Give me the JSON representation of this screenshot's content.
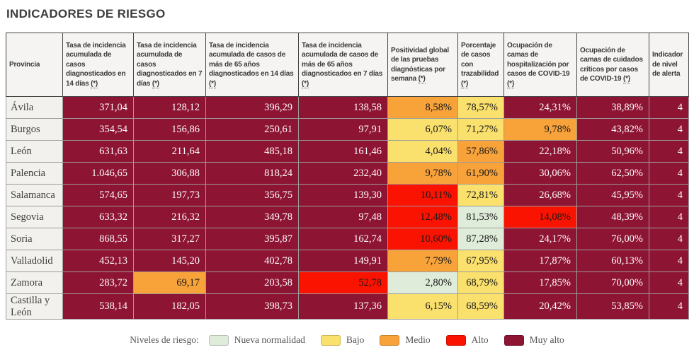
{
  "title": "INDICADORES DE RIESGO",
  "colors": {
    "muy_alto": "#8e1434",
    "alto": "#fb1301",
    "medio": "#f8a23a",
    "bajo": "#fae06c",
    "nueva_normalidad": "#dfecd9"
  },
  "table": {
    "headers": [
      {
        "label": "Provincia",
        "suffix": ""
      },
      {
        "label": "Tasa de incidencia acumulada de casos diagnosticados en 14 días",
        "suffix": "(*)"
      },
      {
        "label": "Tasa de incidencia acumulada de casos diagnosticados en 7 días",
        "suffix": "(*)"
      },
      {
        "label": "Tasa de incidencia acumulada de casos de más de 65 años diagnosticados en 14 días",
        "suffix": "(*)"
      },
      {
        "label": "Tasa de incidencia acumulada de casos de más de 65 años diagnosticados en 7 días",
        "suffix": "(*)"
      },
      {
        "label": "Positividad global de las pruebas diagnósticas por semana",
        "suffix": "(*)"
      },
      {
        "label": "Porcentaje de casos con trazabilidad",
        "suffix": "(*)"
      },
      {
        "label": "Ocupación de camas de hospitalización por casos de COVID-19",
        "suffix": "(*)"
      },
      {
        "label": "Ocupación de camas de cuidados críticos por casos de COVID-19",
        "suffix": "(*)"
      },
      {
        "label": "Indicador de nivel de alerta",
        "suffix": ""
      }
    ],
    "rows": [
      {
        "provincia": "Ávila",
        "values": [
          "371,04",
          "128,12",
          "396,29",
          "138,58",
          "8,58%",
          "78,57%",
          "24,31%",
          "38,89%",
          "4"
        ],
        "levels": [
          "muy_alto",
          "muy_alto",
          "muy_alto",
          "muy_alto",
          "medio",
          "bajo",
          "muy_alto",
          "muy_alto",
          "muy_alto"
        ]
      },
      {
        "provincia": "Burgos",
        "values": [
          "354,54",
          "156,86",
          "250,61",
          "97,91",
          "6,07%",
          "71,27%",
          "9,78%",
          "43,82%",
          "4"
        ],
        "levels": [
          "muy_alto",
          "muy_alto",
          "muy_alto",
          "muy_alto",
          "bajo",
          "bajo",
          "medio",
          "muy_alto",
          "muy_alto"
        ]
      },
      {
        "provincia": "León",
        "values": [
          "631,63",
          "211,64",
          "485,18",
          "161,46",
          "4,04%",
          "57,86%",
          "22,18%",
          "50,96%",
          "4"
        ],
        "levels": [
          "muy_alto",
          "muy_alto",
          "muy_alto",
          "muy_alto",
          "bajo",
          "medio",
          "muy_alto",
          "muy_alto",
          "muy_alto"
        ]
      },
      {
        "provincia": "Palencia",
        "values": [
          "1.046,65",
          "306,88",
          "818,24",
          "232,40",
          "9,78%",
          "61,90%",
          "30,06%",
          "62,50%",
          "4"
        ],
        "levels": [
          "muy_alto",
          "muy_alto",
          "muy_alto",
          "muy_alto",
          "medio",
          "medio",
          "muy_alto",
          "muy_alto",
          "muy_alto"
        ]
      },
      {
        "provincia": "Salamanca",
        "values": [
          "574,65",
          "197,73",
          "356,75",
          "139,30",
          "10,11%",
          "72,81%",
          "26,68%",
          "45,95%",
          "4"
        ],
        "levels": [
          "muy_alto",
          "muy_alto",
          "muy_alto",
          "muy_alto",
          "alto",
          "bajo",
          "muy_alto",
          "muy_alto",
          "muy_alto"
        ]
      },
      {
        "provincia": "Segovia",
        "values": [
          "633,32",
          "216,32",
          "349,78",
          "97,48",
          "12,48%",
          "81,53%",
          "14,08%",
          "48,39%",
          "4"
        ],
        "levels": [
          "muy_alto",
          "muy_alto",
          "muy_alto",
          "muy_alto",
          "alto",
          "nueva_normalidad",
          "alto",
          "muy_alto",
          "muy_alto"
        ]
      },
      {
        "provincia": "Soria",
        "values": [
          "868,55",
          "317,27",
          "395,87",
          "162,74",
          "10,60%",
          "87,28%",
          "24,17%",
          "76,00%",
          "4"
        ],
        "levels": [
          "muy_alto",
          "muy_alto",
          "muy_alto",
          "muy_alto",
          "alto",
          "nueva_normalidad",
          "muy_alto",
          "muy_alto",
          "muy_alto"
        ]
      },
      {
        "provincia": "Valladolid",
        "values": [
          "452,13",
          "145,20",
          "402,78",
          "149,91",
          "7,79%",
          "67,95%",
          "17,87%",
          "60,13%",
          "4"
        ],
        "levels": [
          "muy_alto",
          "muy_alto",
          "muy_alto",
          "muy_alto",
          "medio",
          "bajo",
          "muy_alto",
          "muy_alto",
          "muy_alto"
        ]
      },
      {
        "provincia": "Zamora",
        "values": [
          "283,72",
          "69,17",
          "203,58",
          "52,78",
          "2,80%",
          "68,79%",
          "17,85%",
          "70,00%",
          "4"
        ],
        "levels": [
          "muy_alto",
          "medio",
          "muy_alto",
          "alto",
          "nueva_normalidad",
          "bajo",
          "muy_alto",
          "muy_alto",
          "muy_alto"
        ]
      },
      {
        "provincia": "Castilla y León",
        "values": [
          "538,14",
          "182,05",
          "398,73",
          "137,36",
          "6,15%",
          "68,59%",
          "20,42%",
          "53,85%",
          "4"
        ],
        "levels": [
          "muy_alto",
          "muy_alto",
          "muy_alto",
          "muy_alto",
          "bajo",
          "bajo",
          "muy_alto",
          "muy_alto",
          "muy_alto"
        ]
      }
    ]
  },
  "legend": {
    "label": "Niveles de riesgo:",
    "items": [
      {
        "label": "Nueva normalidad",
        "level": "nueva_normalidad"
      },
      {
        "label": "Bajo",
        "level": "bajo"
      },
      {
        "label": "Medio",
        "level": "medio"
      },
      {
        "label": "Alto",
        "level": "alto"
      },
      {
        "label": "Muy alto",
        "level": "muy_alto"
      }
    ]
  }
}
